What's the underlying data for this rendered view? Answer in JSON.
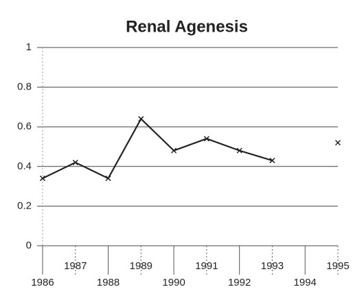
{
  "chart_data": {
    "type": "line",
    "title": "Renal Agenesis",
    "x": [
      1986,
      1987,
      1988,
      1989,
      1990,
      1991,
      1992,
      1993,
      1994,
      1995
    ],
    "series": [
      {
        "color": "#222222",
        "values": [
          0.34,
          0.42,
          0.34,
          0.64,
          0.48,
          0.54,
          0.48,
          0.43,
          null,
          0.52
        ]
      }
    ],
    "xlim": [
      1986,
      1995
    ],
    "xticks": [
      1986,
      1987,
      1988,
      1989,
      1990,
      1991,
      1992,
      1993,
      1994,
      1995
    ],
    "ylim": [
      0,
      1
    ],
    "yticks": [
      0,
      0.2,
      0.4,
      0.6,
      0.8,
      1
    ],
    "grid": true
  }
}
